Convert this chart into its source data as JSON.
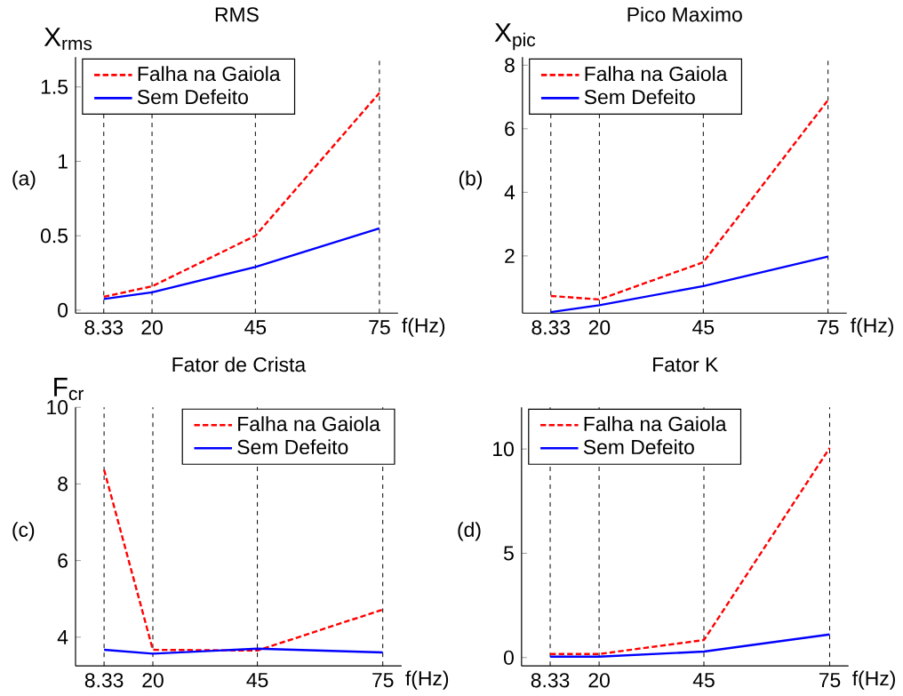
{
  "chart_data": [
    {
      "type": "line",
      "title": "RMS",
      "ylabel": "X$_{rms}$",
      "xlabel": "f(Hz)",
      "annotations": [
        "(a)"
      ],
      "x": [
        8.33,
        20,
        45,
        75
      ],
      "xlim": [
        1.5,
        79.5
      ],
      "xticks": [
        8.33,
        20,
        45,
        75
      ],
      "ylim": [
        -0.02,
        1.7
      ],
      "yticks": [
        0,
        0.5,
        1,
        1.5
      ],
      "grid": "x",
      "legend": "top left",
      "series": [
        {
          "name": "Falha na Gaiola",
          "color": "#ff0000",
          "line_style": "dashed",
          "values": [
            0.09,
            0.16,
            0.5,
            1.46
          ]
        },
        {
          "name": "Sem Defeito",
          "color": "#0000ff",
          "line_style": "solid",
          "values": [
            0.075,
            0.12,
            0.29,
            0.55
          ]
        }
      ]
    },
    {
      "type": "line",
      "title": "Pico Maximo",
      "ylabel": "X$_{pic}$",
      "xlabel": "f(Hz)",
      "annotations": [
        "(b)"
      ],
      "x": [
        8.33,
        20,
        45,
        75
      ],
      "xlim": [
        1.5,
        79.5
      ],
      "xticks": [
        8.33,
        20,
        45,
        75
      ],
      "ylim": [
        0.2,
        8.25
      ],
      "yticks": [
        2,
        4,
        6,
        8
      ],
      "grid": "x",
      "legend": "top left",
      "series": [
        {
          "name": "Falha na Gaiola",
          "color": "#ff0000",
          "line_style": "dashed",
          "values": [
            0.74,
            0.63,
            1.8,
            6.9
          ]
        },
        {
          "name": "Sem Defeito",
          "color": "#0000ff",
          "line_style": "solid",
          "values": [
            0.23,
            0.45,
            1.05,
            1.98
          ]
        }
      ]
    },
    {
      "type": "line",
      "title": "Fator de Crista",
      "ylabel": "F$_{cr}$",
      "xlabel": "f(Hz)",
      "annotations": [
        "(c)"
      ],
      "x": [
        8.33,
        20,
        45,
        75
      ],
      "xlim": [
        1.5,
        79.5
      ],
      "xticks": [
        8.33,
        20,
        45,
        75
      ],
      "ylim": [
        3.25,
        10
      ],
      "yticks": [
        4,
        6,
        8,
        10
      ],
      "grid": "x",
      "legend": "top right",
      "series": [
        {
          "name": "Falha na Gaiola",
          "color": "#ff0000",
          "line_style": "dashed",
          "values": [
            8.37,
            3.67,
            3.65,
            4.72
          ]
        },
        {
          "name": "Sem Defeito",
          "color": "#0000ff",
          "line_style": "solid",
          "values": [
            3.67,
            3.57,
            3.7,
            3.6
          ]
        }
      ]
    },
    {
      "type": "line",
      "title": "Fator K",
      "xlabel": "f(Hz)",
      "annotations": [
        "(d)"
      ],
      "x": [
        8.33,
        20,
        45,
        75
      ],
      "xlim": [
        1.5,
        79.5
      ],
      "xticks": [
        8.33,
        20,
        45,
        75
      ],
      "ylim": [
        -0.4,
        12
      ],
      "yticks": [
        0,
        5,
        10
      ],
      "grid": "x",
      "legend": "top left",
      "series": [
        {
          "name": "Falha na Gaiola",
          "color": "#ff0000",
          "line_style": "dashed",
          "values": [
            0.17,
            0.17,
            0.84,
            10.05
          ]
        },
        {
          "name": "Sem Defeito",
          "color": "#0000ff",
          "line_style": "solid",
          "values": [
            0.04,
            0.04,
            0.29,
            1.11
          ]
        }
      ]
    }
  ]
}
